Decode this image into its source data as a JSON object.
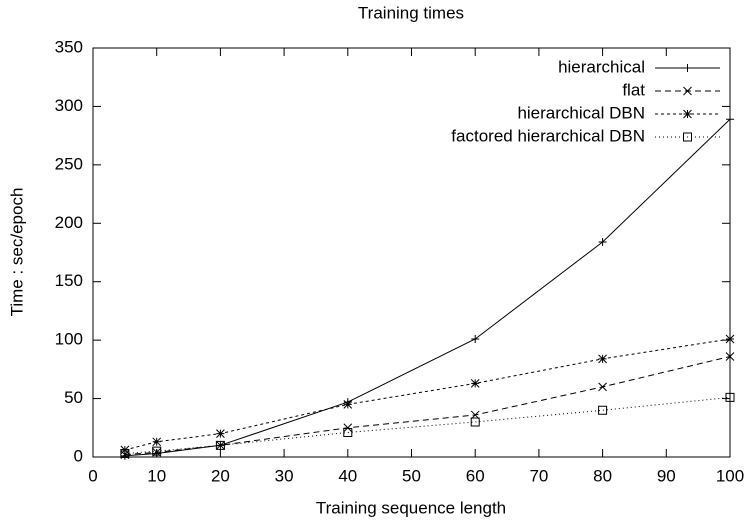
{
  "chart_data": {
    "type": "line",
    "title": "Training times",
    "x_label": "Training sequence length",
    "y_label": "Time : sec/epoch",
    "x": [
      5,
      10,
      20,
      40,
      60,
      80,
      100
    ],
    "series": [
      {
        "name": "hierarchical",
        "color": "#000000",
        "dash": "none",
        "marker": "plus",
        "values": [
          1,
          3,
          10,
          47,
          101,
          184,
          289
        ]
      },
      {
        "name": "flat",
        "color": "#000000",
        "dash": "6,4",
        "marker": "cross",
        "values": [
          2,
          4,
          10,
          25,
          36,
          60,
          86
        ]
      },
      {
        "name": "hierarchical DBN",
        "color": "#000000",
        "dash": "3,3",
        "marker": "star",
        "values": [
          6,
          13,
          20,
          45,
          63,
          84,
          101
        ]
      },
      {
        "name": "factored hierarchical DBN",
        "color": "#000000",
        "dash": "1,3",
        "marker": "square",
        "values": [
          3,
          5,
          10,
          21,
          30,
          40,
          51
        ]
      }
    ],
    "xlim": [
      0,
      100
    ],
    "xticks": [
      0,
      10,
      20,
      30,
      40,
      50,
      60,
      70,
      80,
      90,
      100
    ],
    "ylim": [
      0,
      350
    ],
    "yticks": [
      0,
      50,
      100,
      150,
      200,
      250,
      300,
      350
    ],
    "legend": "top-right",
    "grid": false
  }
}
